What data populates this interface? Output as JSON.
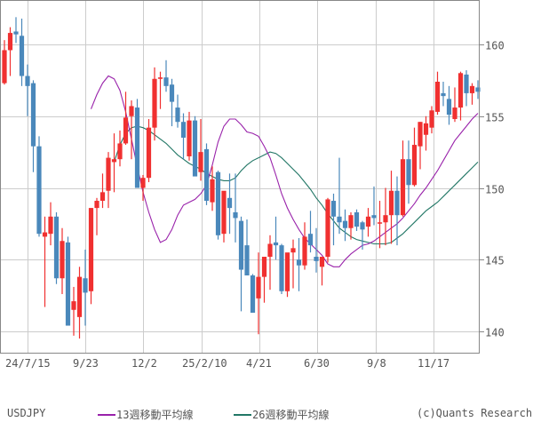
{
  "chart_data": {
    "type": "candlestick",
    "title": "",
    "symbol": "USDJPY",
    "xlabel": "",
    "ylabel": "",
    "ylim": [
      138.5,
      163
    ],
    "y_ticks": [
      140,
      145,
      150,
      155,
      160
    ],
    "x_ticks": [
      "24/7/15",
      "9/23",
      "12/2",
      "25/2/10",
      "4/21",
      "6/30",
      "9/8",
      "11/17"
    ],
    "grid": true,
    "legend_position": "bottom",
    "colors": {
      "up": "#f03030",
      "down": "#4a88bb",
      "ma13": "#9922aa",
      "ma26": "#227766",
      "grid": "#cccccc",
      "frame": "#888888"
    },
    "series": [
      {
        "name": "13週移動平均線",
        "color": "#9922aa"
      },
      {
        "name": "26週移動平均線",
        "color": "#227766"
      }
    ],
    "candles": [
      {
        "o": 157.3,
        "h": 160.3,
        "l": 157.2,
        "c": 159.6
      },
      {
        "o": 159.6,
        "h": 161.2,
        "l": 157.8,
        "c": 160.8
      },
      {
        "o": 160.9,
        "h": 161.9,
        "l": 160.1,
        "c": 160.7
      },
      {
        "o": 160.6,
        "h": 161.8,
        "l": 157.1,
        "c": 157.8
      },
      {
        "o": 157.8,
        "h": 158.6,
        "l": 155.0,
        "c": 157.1
      },
      {
        "o": 157.3,
        "h": 157.5,
        "l": 151.1,
        "c": 152.9
      },
      {
        "o": 152.9,
        "h": 153.6,
        "l": 146.6,
        "c": 146.8
      },
      {
        "o": 146.6,
        "h": 148.0,
        "l": 141.7,
        "c": 146.9
      },
      {
        "o": 146.8,
        "h": 149.0,
        "l": 146.0,
        "c": 148.0
      },
      {
        "o": 148.0,
        "h": 148.3,
        "l": 143.3,
        "c": 143.7
      },
      {
        "o": 143.7,
        "h": 147.2,
        "l": 142.6,
        "c": 146.3
      },
      {
        "o": 146.2,
        "h": 146.6,
        "l": 142.5,
        "c": 140.4
      },
      {
        "o": 141.5,
        "h": 143.1,
        "l": 139.7,
        "c": 142.1
      },
      {
        "o": 141.0,
        "h": 144.5,
        "l": 139.5,
        "c": 143.8
      },
      {
        "o": 143.7,
        "h": 145.7,
        "l": 140.4,
        "c": 142.7
      },
      {
        "o": 142.8,
        "h": 148.6,
        "l": 141.9,
        "c": 148.6
      },
      {
        "o": 148.6,
        "h": 149.3,
        "l": 146.7,
        "c": 149.1
      },
      {
        "o": 149.1,
        "h": 151.0,
        "l": 148.6,
        "c": 149.7
      },
      {
        "o": 149.8,
        "h": 152.5,
        "l": 148.6,
        "c": 152.1
      },
      {
        "o": 151.8,
        "h": 153.8,
        "l": 149.7,
        "c": 152.0
      },
      {
        "o": 152.0,
        "h": 154.0,
        "l": 151.5,
        "c": 153.1
      },
      {
        "o": 153.1,
        "h": 156.7,
        "l": 153.0,
        "c": 154.9
      },
      {
        "o": 155.0,
        "h": 156.1,
        "l": 152.0,
        "c": 155.7
      },
      {
        "o": 155.6,
        "h": 156.2,
        "l": 151.2,
        "c": 150.0
      },
      {
        "o": 150.0,
        "h": 150.9,
        "l": 149.1,
        "c": 150.7
      },
      {
        "o": 150.7,
        "h": 154.8,
        "l": 150.4,
        "c": 154.2
      },
      {
        "o": 154.2,
        "h": 158.4,
        "l": 153.3,
        "c": 157.6
      },
      {
        "o": 157.6,
        "h": 158.1,
        "l": 155.5,
        "c": 157.7
      },
      {
        "o": 157.7,
        "h": 158.9,
        "l": 156.7,
        "c": 157.1
      },
      {
        "o": 157.2,
        "h": 157.6,
        "l": 154.3,
        "c": 156.0
      },
      {
        "o": 155.6,
        "h": 156.5,
        "l": 154.2,
        "c": 154.6
      },
      {
        "o": 154.6,
        "h": 155.2,
        "l": 152.0,
        "c": 153.5
      },
      {
        "o": 152.2,
        "h": 155.3,
        "l": 151.9,
        "c": 154.7
      },
      {
        "o": 154.7,
        "h": 155.0,
        "l": 152.0,
        "c": 150.8
      },
      {
        "o": 151.1,
        "h": 154.8,
        "l": 150.5,
        "c": 152.5
      },
      {
        "o": 152.7,
        "h": 153.1,
        "l": 148.8,
        "c": 149.1
      },
      {
        "o": 149.0,
        "h": 151.5,
        "l": 148.4,
        "c": 150.6
      },
      {
        "o": 151.1,
        "h": 151.2,
        "l": 146.4,
        "c": 146.7
      },
      {
        "o": 146.8,
        "h": 149.6,
        "l": 146.2,
        "c": 149.8
      },
      {
        "o": 149.3,
        "h": 151.0,
        "l": 146.8,
        "c": 148.6
      },
      {
        "o": 148.3,
        "h": 151.0,
        "l": 146.2,
        "c": 147.9
      },
      {
        "o": 147.7,
        "h": 148.0,
        "l": 141.4,
        "c": 144.3
      },
      {
        "o": 146.0,
        "h": 147.8,
        "l": 143.9,
        "c": 143.9
      },
      {
        "o": 143.9,
        "h": 144.0,
        "l": 142.0,
        "c": 141.3
      },
      {
        "o": 142.3,
        "h": 145.5,
        "l": 139.8,
        "c": 143.8
      },
      {
        "o": 143.8,
        "h": 144.8,
        "l": 142.0,
        "c": 145.2
      },
      {
        "o": 145.2,
        "h": 146.7,
        "l": 142.9,
        "c": 146.1
      },
      {
        "o": 146.2,
        "h": 148.0,
        "l": 145.0,
        "c": 146.0
      },
      {
        "o": 146.0,
        "h": 146.1,
        "l": 142.6,
        "c": 142.8
      },
      {
        "o": 142.8,
        "h": 145.1,
        "l": 142.4,
        "c": 145.5
      },
      {
        "o": 145.5,
        "h": 146.4,
        "l": 143.0,
        "c": 145.8
      },
      {
        "o": 145.0,
        "h": 146.5,
        "l": 142.8,
        "c": 144.6
      },
      {
        "o": 144.6,
        "h": 147.6,
        "l": 144.3,
        "c": 146.6
      },
      {
        "o": 146.8,
        "h": 148.4,
        "l": 145.5,
        "c": 146.0
      },
      {
        "o": 145.2,
        "h": 147.2,
        "l": 144.1,
        "c": 144.9
      },
      {
        "o": 144.5,
        "h": 145.0,
        "l": 143.2,
        "c": 145.2
      },
      {
        "o": 145.2,
        "h": 149.3,
        "l": 144.8,
        "c": 149.2
      },
      {
        "o": 149.1,
        "h": 149.6,
        "l": 146.0,
        "c": 148.0
      },
      {
        "o": 148.0,
        "h": 152.1,
        "l": 146.8,
        "c": 147.6
      },
      {
        "o": 147.7,
        "h": 148.5,
        "l": 146.3,
        "c": 147.2
      },
      {
        "o": 147.2,
        "h": 148.3,
        "l": 146.4,
        "c": 148.1
      },
      {
        "o": 148.3,
        "h": 148.5,
        "l": 147.0,
        "c": 147.3
      },
      {
        "o": 147.6,
        "h": 147.7,
        "l": 145.7,
        "c": 147.1
      },
      {
        "o": 147.3,
        "h": 148.6,
        "l": 146.6,
        "c": 148.0
      },
      {
        "o": 148.1,
        "h": 150.1,
        "l": 147.4,
        "c": 147.9
      },
      {
        "o": 147.6,
        "h": 149.1,
        "l": 145.8,
        "c": 147.6
      },
      {
        "o": 147.6,
        "h": 150.0,
        "l": 146.0,
        "c": 148.1
      },
      {
        "o": 148.1,
        "h": 151.2,
        "l": 146.1,
        "c": 149.8
      },
      {
        "o": 149.8,
        "h": 150.8,
        "l": 146.0,
        "c": 148.1
      },
      {
        "o": 148.1,
        "h": 153.3,
        "l": 148.0,
        "c": 152.0
      },
      {
        "o": 152.0,
        "h": 153.3,
        "l": 148.9,
        "c": 150.2
      },
      {
        "o": 150.2,
        "h": 154.2,
        "l": 150.1,
        "c": 153.0
      },
      {
        "o": 152.9,
        "h": 154.6,
        "l": 151.3,
        "c": 154.6
      },
      {
        "o": 153.7,
        "h": 155.0,
        "l": 152.6,
        "c": 154.5
      },
      {
        "o": 154.2,
        "h": 155.7,
        "l": 153.8,
        "c": 155.4
      },
      {
        "o": 155.3,
        "h": 158.1,
        "l": 155.1,
        "c": 157.4
      },
      {
        "o": 156.6,
        "h": 157.4,
        "l": 155.7,
        "c": 156.4
      },
      {
        "o": 156.2,
        "h": 157.1,
        "l": 154.4,
        "c": 155.1
      },
      {
        "o": 154.8,
        "h": 157.0,
        "l": 154.6,
        "c": 155.6
      },
      {
        "o": 155.6,
        "h": 158.1,
        "l": 154.7,
        "c": 158.0
      },
      {
        "o": 157.9,
        "h": 158.2,
        "l": 155.7,
        "c": 156.6
      },
      {
        "o": 156.6,
        "h": 157.3,
        "l": 155.8,
        "c": 157.1
      },
      {
        "o": 157.0,
        "h": 157.5,
        "l": 156.2,
        "c": 156.7
      }
    ],
    "ma13": [
      155.5,
      156.5,
      157.3,
      157.8,
      157.6,
      156.8,
      155.3,
      153.4,
      151.5,
      149.7,
      148.3,
      147.1,
      146.2,
      146.4,
      147.1,
      148.1,
      148.8,
      149.0,
      149.2,
      149.6,
      150.2,
      151.6,
      153.2,
      154.3,
      154.8,
      154.8,
      154.4,
      153.9,
      153.8,
      153.6,
      152.9,
      152.1,
      150.9,
      149.6,
      148.6,
      147.8,
      147.1,
      146.5,
      146.1,
      145.7,
      145.3,
      144.7,
      144.5,
      144.5,
      145.0,
      145.4,
      145.7,
      146.0,
      146.1,
      146.3,
      146.6,
      146.9,
      147.2,
      147.5,
      147.9,
      148.4,
      148.9,
      149.5,
      150.0,
      150.6,
      151.2,
      151.9,
      152.6,
      153.3,
      153.8,
      154.3,
      154.8,
      155.2
    ],
    "ma26": [
      151.8,
      153.0,
      153.8,
      154.2,
      154.3,
      154.2,
      154.0,
      153.7,
      153.4,
      153.1,
      152.7,
      152.3,
      152.0,
      151.7,
      151.5,
      151.3,
      151.0,
      150.8,
      150.6,
      150.5,
      150.5,
      150.7,
      151.2,
      151.6,
      151.9,
      152.1,
      152.3,
      152.5,
      152.4,
      152.1,
      151.7,
      151.3,
      150.9,
      150.4,
      149.9,
      149.3,
      148.8,
      148.2,
      147.7,
      147.2,
      146.9,
      146.6,
      146.4,
      146.3,
      146.2,
      146.1,
      146.1,
      146.1,
      146.2,
      146.5,
      146.8,
      147.2,
      147.6,
      148.0,
      148.4,
      148.7,
      149.0,
      149.4,
      149.8,
      150.2,
      150.6,
      151.0,
      151.4,
      151.8
    ]
  },
  "footer": {
    "symbol": "USDJPY",
    "legend_ma13": "13週移動平均線",
    "legend_ma26": "26週移動平均線",
    "copyright": "(c)Quants Research"
  }
}
